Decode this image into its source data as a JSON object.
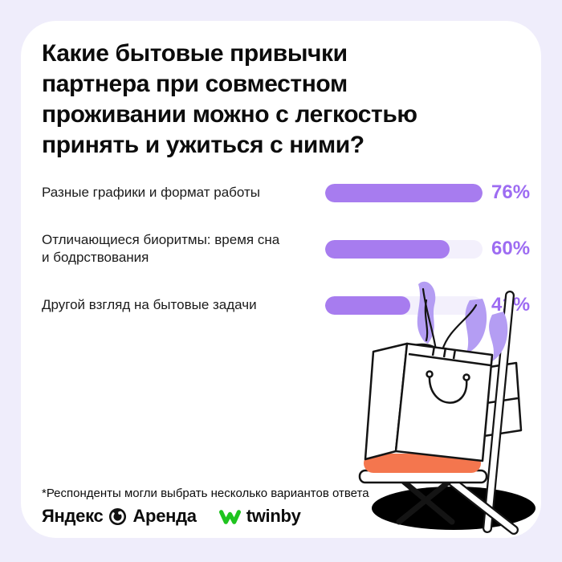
{
  "title": "Какие бытовые привычки\nпартнера при совместном\nпроживании можно с легкостью\nпринять и ужиться с ними?",
  "chart_data": {
    "type": "bar",
    "orientation": "horizontal",
    "title": "Какие бытовые привычки партнера при совместном проживании можно с легкостью принять и ужиться с ними?",
    "categories": [
      "Разные графики и формат работы",
      "Отличающиеся биоритмы: время сна и бодрствования",
      "Другой взгляд на бытовые задачи"
    ],
    "display_labels": [
      "Разные графики и формат работы",
      "Отличающиеся биоритмы: время сна\nи бодрствования",
      "Другой взгляд на бытовые задачи"
    ],
    "values": [
      76,
      60,
      41
    ],
    "unit": "%",
    "xlim": [
      0,
      76
    ],
    "grid": false,
    "legend": false,
    "value_label_position": "right-of-bar"
  },
  "footnote": "*Респонденты могли выбрать несколько вариантов ответа",
  "brands": {
    "yandex_text": "Яндекс",
    "arenda_text": "Аренда",
    "twinby_text": "twinby"
  },
  "icons": {
    "yandex_badge": "yandex-arenda-circle-icon",
    "twinby_badge": "twinby-butterfly-icon"
  },
  "colors": {
    "background": "#EFEDFB",
    "card": "#FFFFFF",
    "title_text": "#0C0C0C",
    "bar_fill": "#A77CEF",
    "bar_track": "#F3F0FC",
    "value_text": "#9D6CF2",
    "cushion": "#F4764E",
    "leaves": "#B49DF3",
    "twinby_green": "#1FC41F"
  },
  "illustration": {
    "description": "white paper shopping bag with purple plant leaves standing on a folding chair with coral seat cushion and black ellipse shadow"
  }
}
